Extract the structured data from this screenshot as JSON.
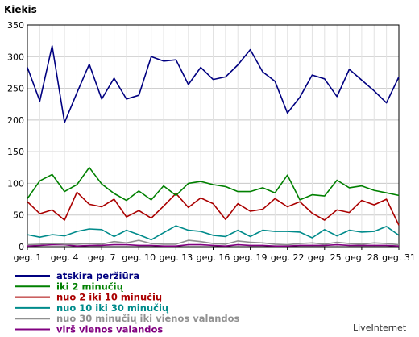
{
  "chart_data": {
    "type": "line",
    "title": "",
    "ylabel": "Kiekis",
    "xlabel": "",
    "ylim": [
      0,
      350
    ],
    "yticks": [
      0,
      50,
      100,
      150,
      200,
      250,
      300,
      350
    ],
    "x": [
      1,
      2,
      3,
      4,
      5,
      6,
      7,
      8,
      9,
      10,
      11,
      12,
      13,
      14,
      15,
      16,
      17,
      18,
      19,
      20,
      21,
      22,
      23,
      24,
      25,
      26,
      27,
      28,
      29,
      30,
      31
    ],
    "xtick_values": [
      1,
      4,
      7,
      10,
      13,
      16,
      19,
      22,
      25,
      28,
      31
    ],
    "xtick_labels": [
      "geg. 1",
      "geg. 4",
      "geg. 7",
      "geg. 10",
      "geg. 13",
      "geg. 16",
      "geg. 19",
      "geg. 22",
      "geg. 25",
      "geg. 28",
      "geg. 31"
    ],
    "grid": true,
    "series": [
      {
        "name": "atskira peržiūra",
        "color": "#000080",
        "values": [
          283,
          230,
          317,
          196,
          243,
          288,
          233,
          266,
          233,
          239,
          300,
          293,
          295,
          256,
          283,
          264,
          268,
          287,
          311,
          276,
          261,
          211,
          236,
          271,
          265,
          237,
          280,
          263,
          246,
          227,
          268
        ]
      },
      {
        "name": "iki 2 minučių",
        "color": "#008000",
        "values": [
          76,
          104,
          114,
          87,
          98,
          125,
          99,
          84,
          73,
          88,
          74,
          96,
          81,
          100,
          103,
          98,
          95,
          87,
          87,
          93,
          85,
          113,
          74,
          82,
          80,
          105,
          93,
          96,
          89,
          85,
          81
        ]
      },
      {
        "name": "nuo 2 iki 10 minučių",
        "color": "#aa0000",
        "values": [
          71,
          52,
          58,
          42,
          86,
          67,
          63,
          75,
          47,
          57,
          45,
          64,
          84,
          62,
          77,
          68,
          43,
          68,
          56,
          59,
          76,
          63,
          71,
          53,
          42,
          58,
          54,
          73,
          66,
          75,
          34
        ]
      },
      {
        "name": "nuo 10 iki 30 minučių",
        "color": "#008b8b",
        "values": [
          19,
          15,
          19,
          17,
          24,
          28,
          27,
          16,
          26,
          19,
          11,
          22,
          33,
          26,
          24,
          18,
          16,
          26,
          16,
          26,
          24,
          24,
          23,
          14,
          27,
          17,
          26,
          23,
          24,
          32,
          18
        ]
      },
      {
        "name": "nuo 30 minučių iki vienos valandos",
        "color": "#909090",
        "values": [
          3,
          4,
          5,
          4,
          4,
          5,
          4,
          8,
          6,
          10,
          5,
          4,
          4,
          10,
          8,
          5,
          4,
          9,
          7,
          6,
          4,
          3,
          5,
          6,
          4,
          7,
          5,
          4,
          6,
          5,
          3
        ]
      },
      {
        "name": "virš vienos valandos",
        "color": "#800080",
        "values": [
          1,
          2,
          3,
          3,
          1,
          2,
          2,
          3,
          3,
          2,
          2,
          1,
          1,
          3,
          3,
          2,
          1,
          3,
          2,
          2,
          1,
          1,
          2,
          2,
          2,
          3,
          2,
          2,
          2,
          2,
          1
        ]
      }
    ],
    "credit": "LiveInternet"
  }
}
